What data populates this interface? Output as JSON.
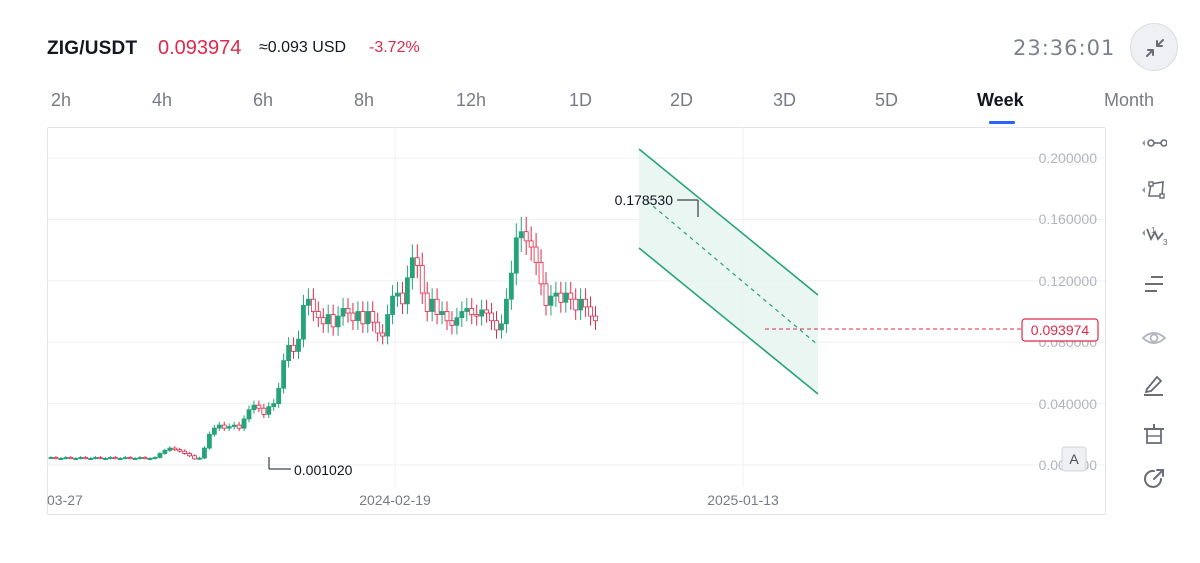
{
  "header": {
    "pair": "ZIG/USDT",
    "last_price": "0.093974",
    "approx_usd": "≈0.093 USD",
    "change_pct": "-3.72%",
    "clock": "23:36:01"
  },
  "timeframes": [
    {
      "label": "2h",
      "active": false
    },
    {
      "label": "4h",
      "active": false
    },
    {
      "label": "6h",
      "active": false
    },
    {
      "label": "8h",
      "active": false
    },
    {
      "label": "12h",
      "active": false
    },
    {
      "label": "1D",
      "active": false
    },
    {
      "label": "2D",
      "active": false
    },
    {
      "label": "3D",
      "active": false
    },
    {
      "label": "5D",
      "active": false
    },
    {
      "label": "Week",
      "active": true
    },
    {
      "label": "Month",
      "active": false
    }
  ],
  "chart": {
    "price_axis_labels": [
      "0.200000",
      "0.160000",
      "0.120000",
      "0.080000",
      "0.040000",
      "0.000000"
    ],
    "date_labels": [
      "03-27",
      "2024-02-19",
      "2025-01-13"
    ],
    "high_marker": "0.178530",
    "low_marker": "0.001020",
    "current_price_tag": "0.093974",
    "auto_scale_label": "A"
  },
  "colors": {
    "up": "#26a37a",
    "down": "#e0294a",
    "channel": "#26a37a",
    "channel_fill": "#e6f5ee",
    "grid": "#eef0f3",
    "axis_text": "#b2b5be"
  },
  "toolbar": {
    "icons": [
      "trendline-icon",
      "rectangle-icon",
      "pattern-icon",
      "horizontal-lines-icon",
      "eye-icon",
      "pencil-icon",
      "ruler-icon",
      "share-icon"
    ]
  }
}
